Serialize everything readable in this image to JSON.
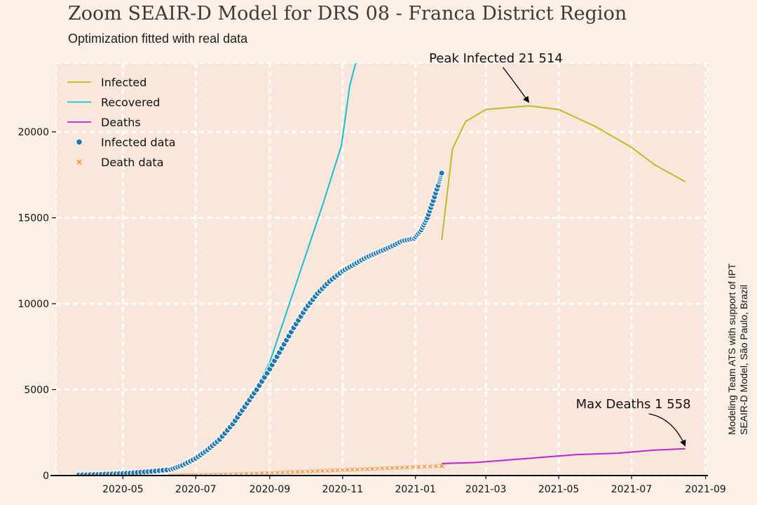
{
  "header": {
    "title": "Zoom SEAIR-D Model for DRS 08 - Franca District Region",
    "subtitle": "Optimization fitted with real data"
  },
  "credit": {
    "line1": "Modeling Team ATS with support of IPT",
    "line2": "SEAIR-D Model, São Paulo, Brazil"
  },
  "chart_data": {
    "type": "line",
    "title": "Zoom SEAIR-D Model for DRS 08 - Franca District Region",
    "subtitle": "Optimization fitted with real data",
    "xlabel": "",
    "ylabel": "",
    "x_range": [
      "2020-03-06",
      "2021-09-03"
    ],
    "ylim": [
      0,
      24000
    ],
    "x_ticks": [
      "2020-05",
      "2020-07",
      "2020-09",
      "2020-11",
      "2021-01",
      "2021-03",
      "2021-05",
      "2021-07",
      "2021-09"
    ],
    "y_ticks": [
      0,
      5000,
      10000,
      15000,
      20000
    ],
    "grid": true,
    "legend_position": "top-left",
    "colors": {
      "infected": "#bcbd22",
      "recovered": "#17becf",
      "deaths": "#c71fd6",
      "infected_data": "#1f77b4",
      "death_data": "#ff7f0e",
      "background": "#fcf0e6",
      "plot_area": "#f9e7dc"
    },
    "series": [
      {
        "name": "Infected",
        "style": "line",
        "points": [
          [
            "2021-01-23",
            13700
          ],
          [
            "2021-02-01",
            19000
          ],
          [
            "2021-02-12",
            20600
          ],
          [
            "2021-03-01",
            21300
          ],
          [
            "2021-04-06",
            21514
          ],
          [
            "2021-05-01",
            21300
          ],
          [
            "2021-06-01",
            20300
          ],
          [
            "2021-07-01",
            19100
          ],
          [
            "2021-07-20",
            18100
          ],
          [
            "2021-08-15",
            17100
          ]
        ]
      },
      {
        "name": "Recovered",
        "style": "line",
        "points": [
          [
            "2020-06-10",
            300
          ],
          [
            "2020-07-01",
            1000
          ],
          [
            "2020-07-27",
            2400
          ],
          [
            "2020-08-16",
            4500
          ],
          [
            "2020-09-01",
            6600
          ],
          [
            "2020-09-16",
            9700
          ],
          [
            "2020-10-01",
            12800
          ],
          [
            "2020-10-16",
            15900
          ],
          [
            "2020-10-31",
            19200
          ],
          [
            "2020-11-07",
            22700
          ],
          [
            "2020-11-12",
            24000
          ]
        ]
      },
      {
        "name": "Deaths",
        "style": "line",
        "points": [
          [
            "2021-01-23",
            700
          ],
          [
            "2021-02-21",
            760
          ],
          [
            "2021-04-06",
            1000
          ],
          [
            "2021-05-16",
            1220
          ],
          [
            "2021-06-20",
            1300
          ],
          [
            "2021-07-20",
            1480
          ],
          [
            "2021-08-15",
            1558
          ]
        ]
      },
      {
        "name": "Infected data",
        "style": "scatter",
        "points": [
          [
            "2020-03-25",
            30
          ],
          [
            "2020-04-10",
            60
          ],
          [
            "2020-04-25",
            100
          ],
          [
            "2020-05-10",
            160
          ],
          [
            "2020-05-25",
            240
          ],
          [
            "2020-06-10",
            350
          ],
          [
            "2020-06-20",
            600
          ],
          [
            "2020-07-01",
            1000
          ],
          [
            "2020-07-11",
            1500
          ],
          [
            "2020-07-21",
            2100
          ],
          [
            "2020-08-01",
            3000
          ],
          [
            "2020-08-11",
            4000
          ],
          [
            "2020-08-21",
            5000
          ],
          [
            "2020-09-01",
            6200
          ],
          [
            "2020-09-11",
            7400
          ],
          [
            "2020-09-21",
            8600
          ],
          [
            "2020-10-01",
            9700
          ],
          [
            "2020-10-11",
            10600
          ],
          [
            "2020-10-21",
            11300
          ],
          [
            "2020-11-01",
            11900
          ],
          [
            "2020-11-11",
            12300
          ],
          [
            "2020-11-21",
            12700
          ],
          [
            "2020-12-01",
            13000
          ],
          [
            "2020-12-11",
            13300
          ],
          [
            "2020-12-21",
            13650
          ],
          [
            "2020-12-31",
            13800
          ],
          [
            "2021-01-06",
            14300
          ],
          [
            "2021-01-11",
            15000
          ],
          [
            "2021-01-16",
            16000
          ],
          [
            "2021-01-21",
            17100
          ],
          [
            "2021-01-23",
            17600
          ]
        ]
      },
      {
        "name": "Death data",
        "style": "scatter",
        "points": [
          [
            "2020-06-10",
            10
          ],
          [
            "2020-07-01",
            30
          ],
          [
            "2020-07-26",
            60
          ],
          [
            "2020-08-21",
            120
          ],
          [
            "2020-09-16",
            190
          ],
          [
            "2020-10-11",
            260
          ],
          [
            "2020-11-05",
            330
          ],
          [
            "2020-11-30",
            400
          ],
          [
            "2020-12-25",
            480
          ],
          [
            "2021-01-23",
            560
          ]
        ]
      }
    ],
    "annotations": [
      {
        "text": "Peak Infected 21 514",
        "x": "2021-04-06",
        "y": 21514
      },
      {
        "text": "Max Deaths 1 558",
        "x": "2021-08-15",
        "y": 1558
      }
    ]
  }
}
